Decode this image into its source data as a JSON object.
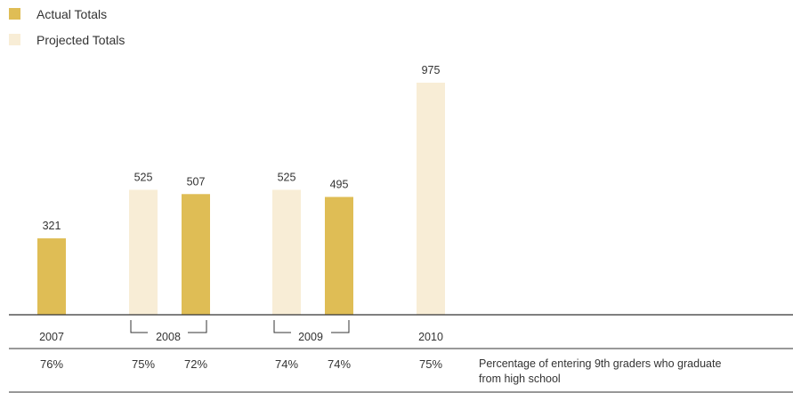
{
  "colors": {
    "actual": "#DFBD55",
    "projected": "#F8EDD6",
    "axis": "#333333",
    "text": "#333333"
  },
  "legend": [
    {
      "label": "Actual Totals",
      "color_key": "actual"
    },
    {
      "label": "Projected Totals",
      "color_key": "projected"
    }
  ],
  "chart_data": {
    "type": "bar",
    "title": "",
    "xlabel": "",
    "ylabel": "",
    "ylim": [
      0,
      975
    ],
    "grid": false,
    "legend_position": "top-left",
    "bars": [
      {
        "series": "Actual Totals",
        "year": "2007",
        "value": 321,
        "pct": "76%"
      },
      {
        "series": "Projected Totals",
        "year": "2008",
        "value": 525,
        "pct": "75%"
      },
      {
        "series": "Actual Totals",
        "year": "2008",
        "value": 507,
        "pct": "72%"
      },
      {
        "series": "Projected Totals",
        "year": "2009",
        "value": 525,
        "pct": "74%"
      },
      {
        "series": "Actual Totals",
        "year": "2009",
        "value": 495,
        "pct": "74%"
      },
      {
        "series": "Projected Totals",
        "year": "2010",
        "value": 975,
        "pct": "75%"
      }
    ],
    "year_labels": [
      "2007",
      "2008",
      "2009",
      "2010"
    ],
    "percentage_note": [
      "Percentage of entering 9th graders who graduate",
      "from high school"
    ]
  }
}
